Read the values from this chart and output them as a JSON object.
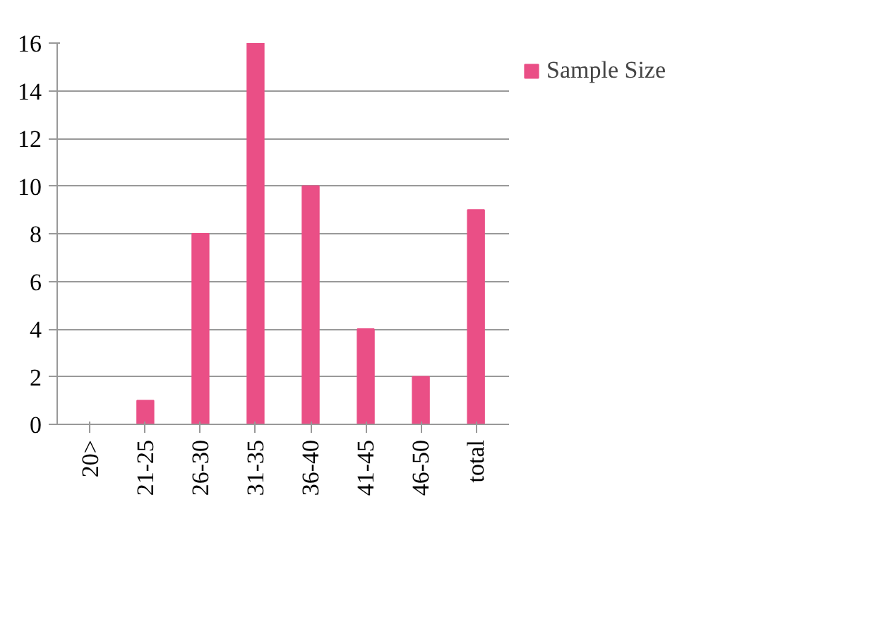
{
  "chart_data": {
    "type": "bar",
    "categories": [
      "20>",
      "21-25",
      "26-30",
      "31-35",
      "36-40",
      "41-45",
      "46-50",
      "total"
    ],
    "series": [
      {
        "name": "Sample Size",
        "color": "#ea4f86",
        "values": [
          0,
          1,
          8,
          16,
          10,
          4,
          2,
          9
        ]
      }
    ],
    "ylim": [
      0,
      16
    ],
    "yticks": [
      0,
      2,
      4,
      6,
      8,
      10,
      12,
      14,
      16
    ],
    "grid": "y",
    "legend": "right"
  }
}
